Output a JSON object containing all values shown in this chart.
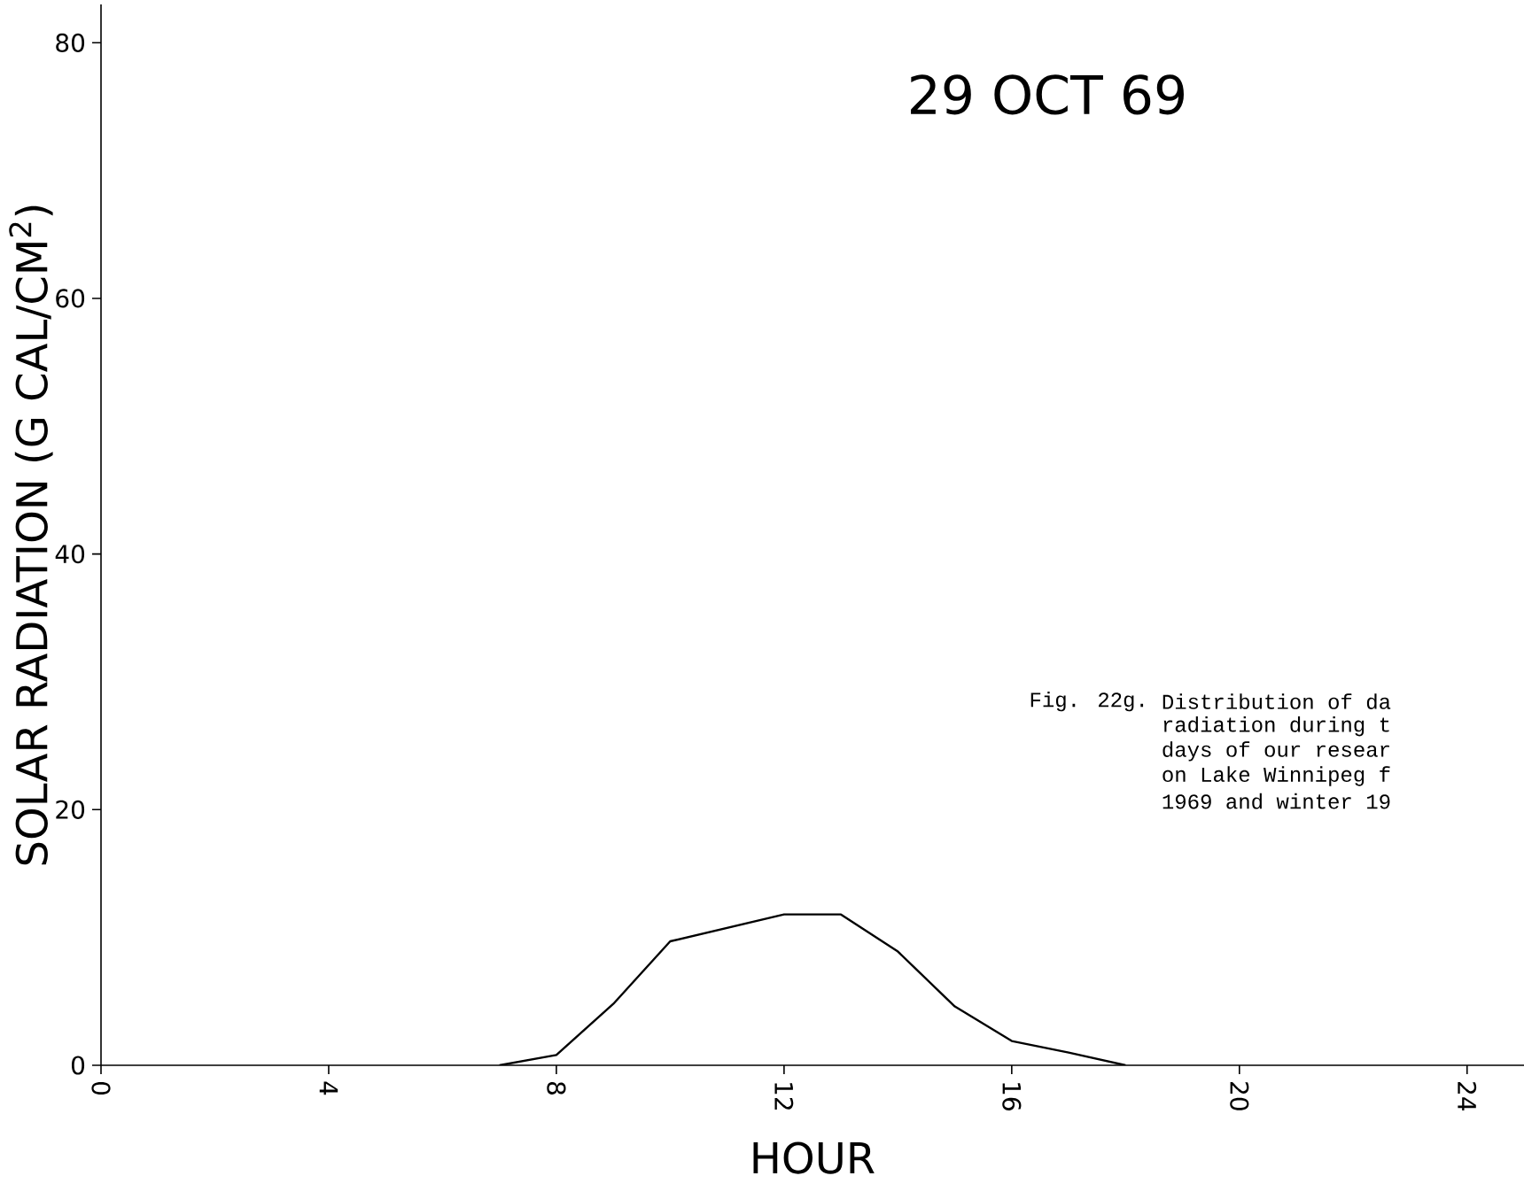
{
  "chart_data": {
    "type": "line",
    "title": "29 OCT 69",
    "xlabel": "HOUR",
    "ylabel": "SOLAR RADIATION (G CAL/CM$^{2}$)",
    "x": [
      7,
      8,
      9,
      10,
      12,
      13,
      14,
      15,
      16,
      17,
      18
    ],
    "series": [
      {
        "color": "#000000",
        "values": [
          0,
          0.8,
          4.8,
          9.7,
          11.8,
          11.8,
          8.9,
          4.6,
          1.9,
          1.0,
          0
        ]
      }
    ],
    "xlim": [
      0,
      25
    ],
    "ylim": [
      0,
      83
    ],
    "xticks": [
      0,
      4,
      8,
      12,
      16,
      20,
      24
    ],
    "yticks": [
      0,
      20,
      40,
      60,
      80
    ],
    "marker": "none",
    "line_style": "solid",
    "annotations": [
      "Fig. 22g.",
      "Distribution of da",
      "radiation during t",
      "days of our resear",
      "on Lake Winnipeg f",
      "1969 and winter 19"
    ]
  }
}
